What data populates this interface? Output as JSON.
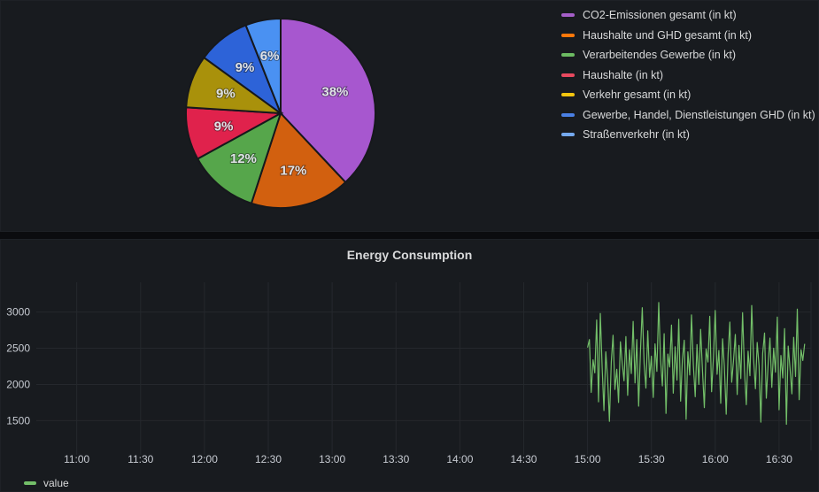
{
  "pie_panel": {
    "chart_data": {
      "type": "pie",
      "legend_position": "right",
      "series": [
        {
          "label": "CO2-Emissionen gesamt (in kt)",
          "percent": 38,
          "value_label": "38%",
          "pie_color": "#a757cf",
          "legend_color": "#a55fc9"
        },
        {
          "label": "Haushalte und GHD gesamt (in kt)",
          "percent": 17,
          "value_label": "17%",
          "pie_color": "#d2600f",
          "legend_color": "#ff780a"
        },
        {
          "label": "Verarbeitendes Gewerbe (in kt)",
          "percent": 12,
          "value_label": "12%",
          "pie_color": "#56a64b",
          "legend_color": "#6cbb62"
        },
        {
          "label": "Haushalte (in kt)",
          "percent": 9,
          "value_label": "9%",
          "pie_color": "#e0224c",
          "legend_color": "#e8495f"
        },
        {
          "label": "Verkehr gesamt (in kt)",
          "percent": 9,
          "value_label": "9%",
          "pie_color": "#a9910b",
          "legend_color": "#f2c50f"
        },
        {
          "label": "Gewerbe, Handel, Dienstleistungen GHD (in kt)",
          "percent": 9,
          "value_label": "9%",
          "pie_color": "#2d63d8",
          "legend_color": "#4a80e4"
        },
        {
          "label": "Straßenverkehr (in kt)",
          "percent": 6,
          "value_label": "6%",
          "pie_color": "#4a91f2",
          "legend_color": "#74a9ee"
        }
      ]
    }
  },
  "energy_panel": {
    "title": "Energy Consumption",
    "legend": {
      "label": "value",
      "color": "#73bf69"
    },
    "chart_data": {
      "type": "line",
      "title": "Energy Consumption",
      "series_name": "value",
      "line_color": "#73bf69",
      "grid": true,
      "x_ticks": [
        "11:00",
        "11:30",
        "12:00",
        "12:30",
        "13:00",
        "13:30",
        "14:00",
        "14:30",
        "15:00",
        "15:30",
        "16:00",
        "16:30"
      ],
      "y_ticks": [
        1500,
        2000,
        2500,
        3000
      ],
      "x_range": [
        "10:41",
        "16:45"
      ],
      "y_range": [
        1090,
        3410
      ],
      "data_start": "15:00",
      "data_end": "16:42",
      "values": [
        2510,
        2620,
        1890,
        2340,
        2160,
        2890,
        1760,
        2980,
        2230,
        1640,
        2450,
        2070,
        1490,
        2310,
        2680,
        1930,
        2210,
        1750,
        2590,
        2300,
        2050,
        2660,
        1850,
        2480,
        2150,
        2870,
        2020,
        2620,
        1700,
        2440,
        3060,
        2280,
        1950,
        2740,
        2100,
        2390,
        1820,
        2560,
        2180,
        3130,
        2350,
        1980,
        2700,
        1600,
        2420,
        2240,
        2820,
        1880,
        2520,
        2060,
        2900,
        1770,
        2340,
        2610,
        1520,
        2450,
        2130,
        2960,
        2270,
        1830,
        2550,
        2000,
        2760,
        2190,
        1680,
        2490,
        2310,
        2940,
        1900,
        2380,
        3020,
        2140,
        2470,
        1740,
        2630,
        2250,
        1590,
        2410,
        2860,
        2030,
        2320,
        2690,
        1860,
        2540,
        2080,
        2990,
        2200,
        1720,
        2460,
        2120,
        3090,
        2360,
        1940,
        2580,
        2260,
        1480,
        2430,
        2710,
        1810,
        2290,
        2640,
        1960,
        2500,
        2170,
        2930,
        1650,
        2400,
        2090,
        2770,
        1450,
        2530,
        2220,
        1870,
        2650,
        2110,
        3040,
        1790,
        2480,
        2330,
        2560
      ]
    }
  }
}
